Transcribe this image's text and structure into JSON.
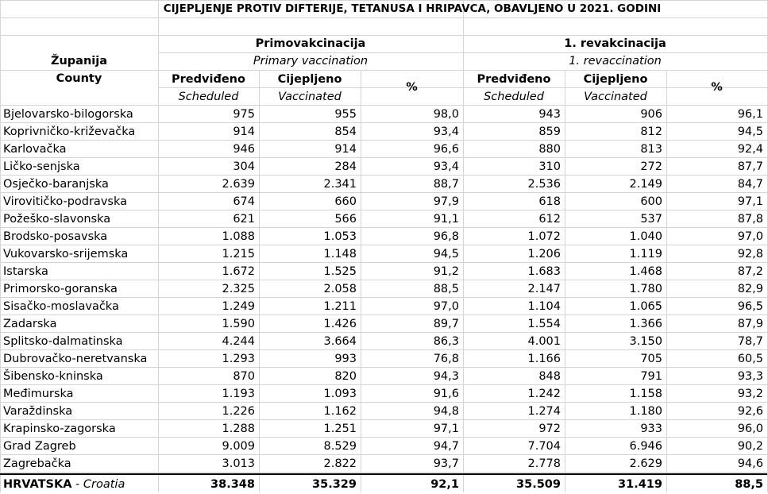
{
  "title": "CIJEPLJENJE PROTIV DIFTERIJE, TETANUSA I HRIPAVCA, OBAVLJENO U 2021. GODINI",
  "headers": {
    "county_hr": "Županija",
    "county_en": "County",
    "primary_hr": "Primovakcinacija",
    "primary_en": "Primary vaccination",
    "revac_hr": "1. revakcinacija",
    "revac_en": "1. revaccination",
    "scheduled_hr": "Predviđeno",
    "scheduled_en": "Scheduled",
    "vaccinated_hr": "Cijepljeno",
    "vaccinated_en": "Vaccinated",
    "percent": "%"
  },
  "rows": [
    [
      "Bjelovarsko-bilogorska",
      "975",
      "955",
      "98,0",
      "943",
      "906",
      "96,1"
    ],
    [
      "Koprivničko-križevačka",
      "914",
      "854",
      "93,4",
      "859",
      "812",
      "94,5"
    ],
    [
      "Karlovačka",
      "946",
      "914",
      "96,6",
      "880",
      "813",
      "92,4"
    ],
    [
      "Ličko-senjska",
      "304",
      "284",
      "93,4",
      "310",
      "272",
      "87,7"
    ],
    [
      "Osječko-baranjska",
      "2.639",
      "2.341",
      "88,7",
      "2.536",
      "2.149",
      "84,7"
    ],
    [
      "Virovitičko-podravska",
      "674",
      "660",
      "97,9",
      "618",
      "600",
      "97,1"
    ],
    [
      "Požeško-slavonska",
      "621",
      "566",
      "91,1",
      "612",
      "537",
      "87,8"
    ],
    [
      "Brodsko-posavska",
      "1.088",
      "1.053",
      "96,8",
      "1.072",
      "1.040",
      "97,0"
    ],
    [
      "Vukovarsko-srijemska",
      "1.215",
      "1.148",
      "94,5",
      "1.206",
      "1.119",
      "92,8"
    ],
    [
      "Istarska",
      "1.672",
      "1.525",
      "91,2",
      "1.683",
      "1.468",
      "87,2"
    ],
    [
      "Primorsko-goranska",
      "2.325",
      "2.058",
      "88,5",
      "2.147",
      "1.780",
      "82,9"
    ],
    [
      "Sisačko-moslavačka",
      "1.249",
      "1.211",
      "97,0",
      "1.104",
      "1.065",
      "96,5"
    ],
    [
      "Zadarska",
      "1.590",
      "1.426",
      "89,7",
      "1.554",
      "1.366",
      "87,9"
    ],
    [
      "Splitsko-dalmatinska",
      "4.244",
      "3.664",
      "86,3",
      "4.001",
      "3.150",
      "78,7"
    ],
    [
      "Dubrovačko-neretvanska",
      "1.293",
      "993",
      "76,8",
      "1.166",
      "705",
      "60,5"
    ],
    [
      "Šibensko-kninska",
      "870",
      "820",
      "94,3",
      "848",
      "791",
      "93,3"
    ],
    [
      "Međimurska",
      "1.193",
      "1.093",
      "91,6",
      "1.242",
      "1.158",
      "93,2"
    ],
    [
      "Varaždinska",
      "1.226",
      "1.162",
      "94,8",
      "1.274",
      "1.180",
      "92,6"
    ],
    [
      "Krapinsko-zagorska",
      "1.288",
      "1.251",
      "97,1",
      "972",
      "933",
      "96,0"
    ],
    [
      "Grad Zagreb",
      "9.009",
      "8.529",
      "94,7",
      "7.704",
      "6.946",
      "90,2"
    ],
    [
      "Zagrebačka",
      "3.013",
      "2.822",
      "93,7",
      "2.778",
      "2.629",
      "94,6"
    ]
  ],
  "total": {
    "label_hr": "HRVATSKA",
    "label_sep": " - ",
    "label_en": "Croatia",
    "values": [
      "38.348",
      "35.329",
      "92,1",
      "35.509",
      "31.419",
      "88,5"
    ]
  }
}
